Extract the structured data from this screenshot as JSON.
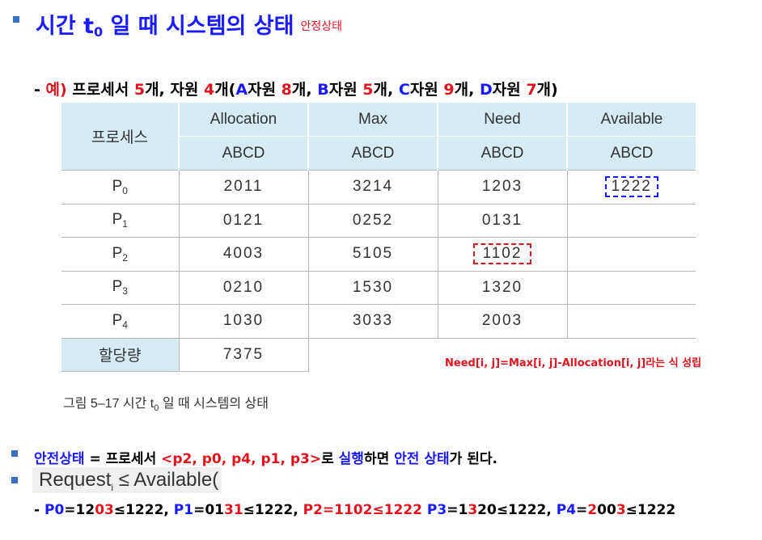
{
  "title": {
    "text": "시간 t",
    "sub": "0",
    "rest": " 일 때 시스템의 상태",
    "note": "안정상태"
  },
  "example": {
    "dash": "- ",
    "ex": "예)",
    "t1": " 프로세서 ",
    "n1": "5",
    "t2": "개, 자원 ",
    "n2": "4",
    "t3": "개(",
    "a": "A",
    "t4": "자원 ",
    "n3": "8",
    "t5": "개, ",
    "b": "B",
    "t6": "자원 ",
    "n4": "5",
    "t7": "개, ",
    "c": "C",
    "t8": "자원 ",
    "n5": "9",
    "t9": "개, ",
    "d": "D",
    "t10": "자원 ",
    "n6": "7",
    "t11": "개)"
  },
  "table": {
    "process_header": "프로세스",
    "columns": [
      "Allocation",
      "Max",
      "Need",
      "Available"
    ],
    "subheader": "ABCD",
    "p": "P",
    "rows": [
      {
        "idx": "0",
        "alloc": "2011",
        "max": "3214",
        "need": "1203",
        "avail": "1222"
      },
      {
        "idx": "1",
        "alloc": "0121",
        "max": "0252",
        "need": "0131",
        "avail": ""
      },
      {
        "idx": "2",
        "alloc": "4003",
        "max": "5105",
        "need": "1102",
        "avail": ""
      },
      {
        "idx": "3",
        "alloc": "0210",
        "max": "1530",
        "need": "1320",
        "avail": ""
      },
      {
        "idx": "4",
        "alloc": "1030",
        "max": "3033",
        "need": "2003",
        "avail": ""
      }
    ],
    "total_label": "할당량",
    "total_value": "7375"
  },
  "need_note": "Need[i, j]=Max[i, j]-Allocation[i, j]라는 식 성립",
  "caption": {
    "pre": "그림 5–17  시간 t",
    "sub": "0",
    "post": " 일 때 시스템의 상태"
  },
  "safe_line": {
    "a": "안전상태",
    "b": " = 프로세서 ",
    "c": "<p2, p0, p4, p1, p3>",
    "d": "로 ",
    "e": "실행",
    "f": "하면 ",
    "g": "안전 상태",
    "h": "가 된다."
  },
  "request": {
    "pre": "Request",
    "sub": "i",
    "post": " ≤ Available("
  },
  "calc": {
    "s1": "- ",
    "p0l": "P0",
    "p0a": "=12",
    "p0b": "03",
    "p0c": "≤1222,   ",
    "p1l": "P1",
    "p1a": "=01",
    "p1b": "31",
    "p1c": "≤1222,  ",
    "p2": "P2=1102≤1222",
    "p3l": "  P3",
    "p3a": "=1",
    "p3b": "3",
    "p3c": "20≤1222, ",
    "p4l": "P4",
    "p4a": "=",
    "p4b": "2",
    "p4c": "00",
    "p4d": "3",
    "p4e": "≤1222"
  },
  "colors": {
    "blue": "#1a1aff",
    "red": "#e0141e",
    "header_bg": "#d6ebf3",
    "bullet": "#3a6fc4"
  }
}
